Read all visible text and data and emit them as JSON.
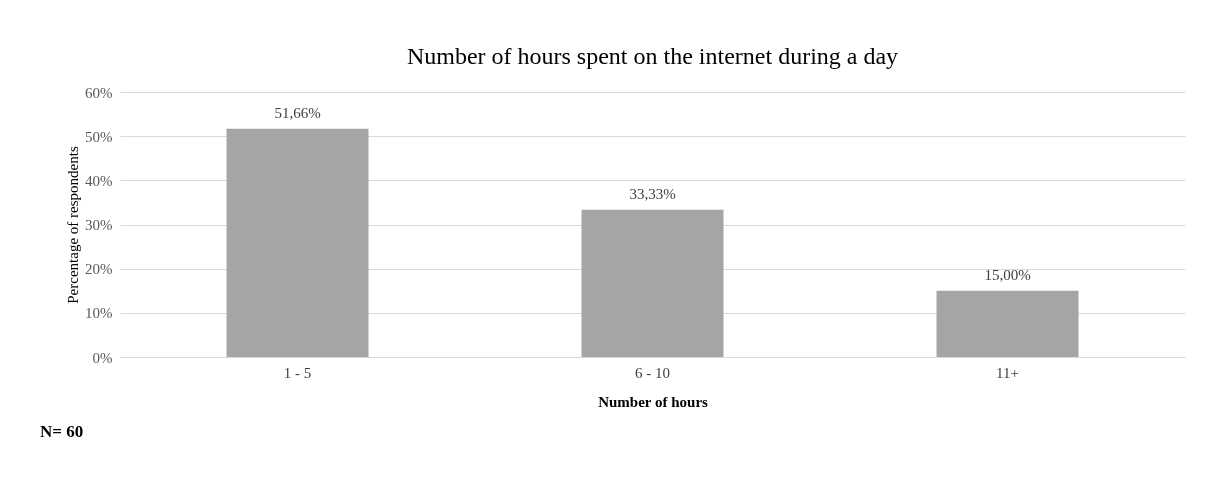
{
  "chart_data": {
    "type": "bar",
    "title": "Number of hours spent on the internet during a day",
    "xlabel": "Number of hours",
    "ylabel": "Percentage of respondents",
    "categories": [
      "1 - 5",
      "6 - 10",
      "11+"
    ],
    "values": [
      51.66,
      33.33,
      15.0
    ],
    "value_labels": [
      "51,66%",
      "33,33%",
      "15,00%"
    ],
    "color": "#a5a5a5",
    "ylim": [
      0,
      60
    ],
    "yticks": [
      {
        "value": 0,
        "label": "0%"
      },
      {
        "value": 10,
        "label": "10%"
      },
      {
        "value": 20,
        "label": "20%"
      },
      {
        "value": 30,
        "label": "30%"
      },
      {
        "value": 40,
        "label": "40%"
      },
      {
        "value": 50,
        "label": "50%"
      },
      {
        "value": 60,
        "label": "60%"
      }
    ],
    "grid": "y",
    "annotations": [
      "N= 60"
    ]
  }
}
